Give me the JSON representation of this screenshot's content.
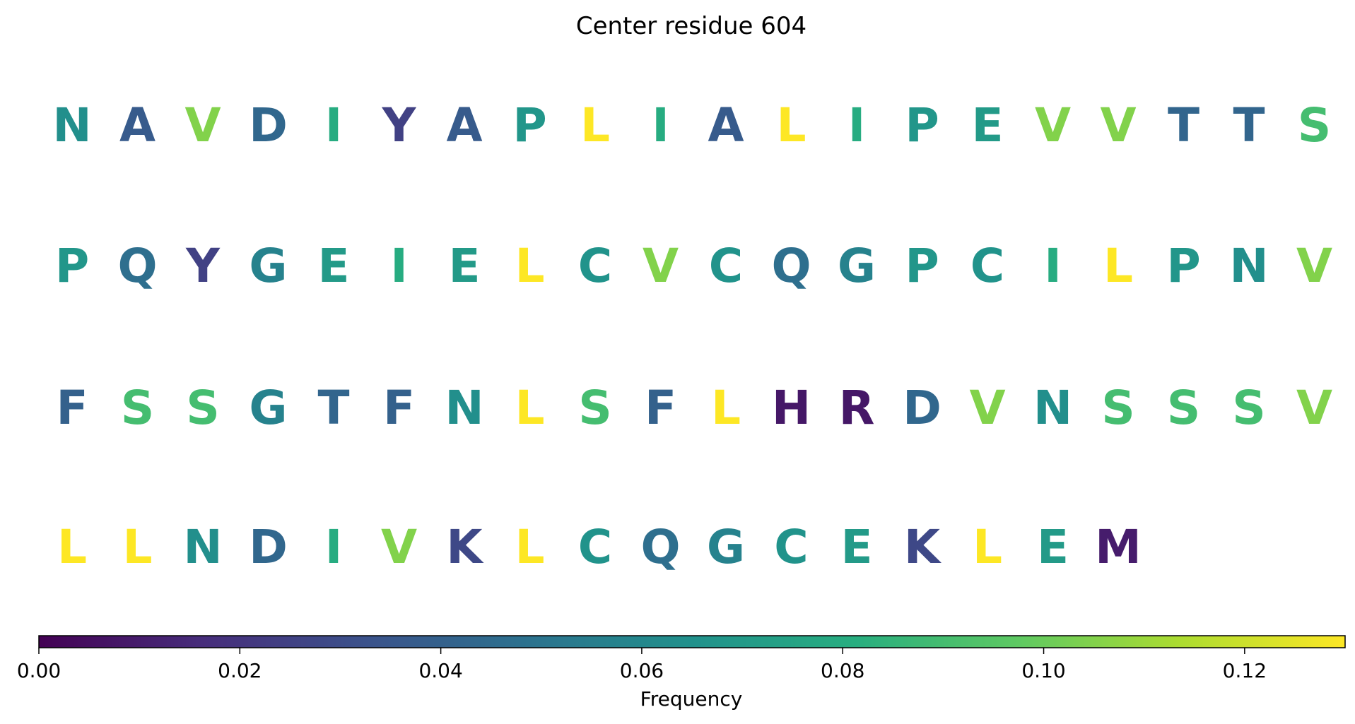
{
  "chart_data": {
    "type": "sequence-frequency",
    "title": "Center residue 604",
    "rows": [
      [
        "N",
        "A",
        "V",
        "D",
        "I",
        "Y",
        "A",
        "P",
        "L",
        "I",
        "A",
        "L",
        "I",
        "P",
        "E",
        "V",
        "V",
        "T",
        "T",
        "S"
      ],
      [
        "P",
        "Q",
        "Y",
        "G",
        "E",
        "I",
        "E",
        "L",
        "C",
        "V",
        "C",
        "Q",
        "G",
        "P",
        "C",
        "I",
        "L",
        "P",
        "N",
        "V"
      ],
      [
        "F",
        "S",
        "S",
        "G",
        "T",
        "F",
        "N",
        "L",
        "S",
        "F",
        "L",
        "H",
        "R",
        "D",
        "V",
        "N",
        "S",
        "S",
        "S",
        "V"
      ],
      [
        "L",
        "L",
        "N",
        "D",
        "I",
        "V",
        "K",
        "L",
        "C",
        "Q",
        "G",
        "C",
        "E",
        "K",
        "L",
        "E",
        "M"
      ]
    ],
    "frequencies": {
      "L": 0.13,
      "V": 0.105,
      "S": 0.09,
      "I": 0.08,
      "E": 0.07,
      "P": 0.068,
      "C": 0.066,
      "N": 0.064,
      "G": 0.057,
      "Q": 0.047,
      "D": 0.043,
      "T": 0.042,
      "F": 0.04,
      "A": 0.037,
      "K": 0.028,
      "Y": 0.025,
      "M": 0.01,
      "H": 0.008,
      "R": 0.008
    },
    "colorbar": {
      "label": "Frequency",
      "min": 0.0,
      "max": 0.13,
      "colormap": "viridis",
      "ticks": [
        0.0,
        0.02,
        0.04,
        0.06,
        0.08,
        0.1,
        0.12
      ],
      "tick_labels": [
        "0.00",
        "0.02",
        "0.04",
        "0.06",
        "0.08",
        "0.10",
        "0.12"
      ]
    }
  }
}
